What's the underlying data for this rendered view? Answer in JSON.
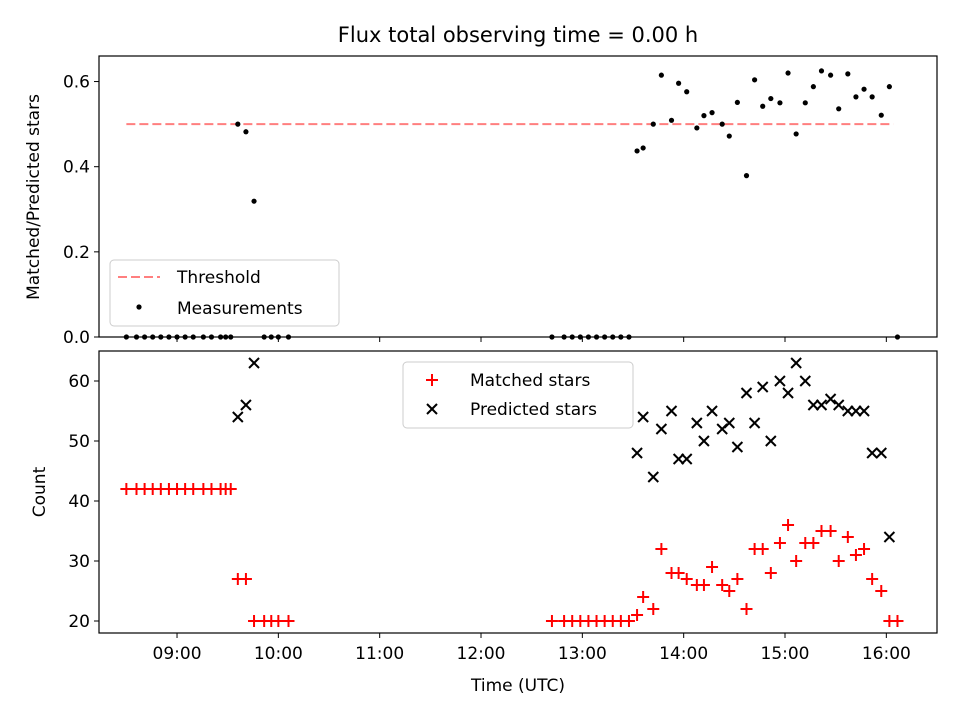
{
  "chart_data": [
    {
      "type": "scatter",
      "title": "Flux total observing time = 0.00 h",
      "xlabel": "",
      "ylabel": "Matched/Predicted stars",
      "xlim": [
        8.23,
        16.5
      ],
      "ylim": [
        0,
        0.66
      ],
      "yticks": [
        0.0,
        0.2,
        0.4,
        0.6
      ],
      "ytick_labels": [
        "0.0",
        "0.2",
        "0.4",
        "0.6"
      ],
      "grid": false,
      "legend": "lower-left",
      "threshold": {
        "name": "Threshold",
        "value": 0.5,
        "x": [
          8.5,
          16.07
        ],
        "color": "#ff7f7f"
      },
      "series": [
        {
          "name": "Measurements",
          "color": "#000000",
          "x": [
            8.5,
            8.6,
            8.68,
            8.76,
            8.84,
            8.92,
            9.0,
            9.08,
            9.16,
            9.26,
            9.34,
            9.43,
            9.48,
            9.53,
            9.6,
            9.68,
            9.76,
            9.86,
            9.93,
            10.0,
            10.1,
            12.7,
            12.82,
            12.9,
            12.98,
            13.06,
            13.14,
            13.22,
            13.3,
            13.38,
            13.46,
            13.54,
            13.6,
            13.7,
            13.78,
            13.88,
            13.95,
            14.03,
            14.13,
            14.2,
            14.28,
            14.38,
            14.45,
            14.53,
            14.62,
            14.7,
            14.78,
            14.86,
            14.95,
            15.03,
            15.11,
            15.2,
            15.28,
            15.36,
            15.45,
            15.53,
            15.62,
            15.7,
            15.78,
            15.86,
            15.95,
            16.03,
            16.11
          ],
          "y": [
            0,
            0,
            0,
            0,
            0,
            0,
            0,
            0,
            0,
            0,
            0,
            0,
            0,
            0,
            0.5,
            0.482,
            0.319,
            0,
            0,
            0,
            0,
            0,
            0,
            0,
            0,
            0,
            0,
            0,
            0,
            0,
            0,
            0.437,
            0.444,
            0.5,
            0.615,
            0.509,
            0.596,
            0.576,
            0.491,
            0.52,
            0.527,
            0.5,
            0.472,
            0.551,
            0.379,
            0.604,
            0.542,
            0.56,
            0.55,
            0.62,
            0.477,
            0.55,
            0.588,
            0.625,
            0.615,
            0.536,
            0.618,
            0.564,
            0.582,
            0.564,
            0.521,
            0.588,
            0
          ]
        }
      ]
    },
    {
      "type": "scatter",
      "title": "",
      "xlabel": "Time (UTC)",
      "ylabel": "Count",
      "xlim": [
        8.23,
        16.5
      ],
      "ylim": [
        18,
        65
      ],
      "yticks": [
        20,
        30,
        40,
        50,
        60
      ],
      "ytick_labels": [
        "20",
        "30",
        "40",
        "50",
        "60"
      ],
      "xticks": [
        9,
        10,
        11,
        12,
        13,
        14,
        15,
        16
      ],
      "xtick_labels": [
        "09:00",
        "10:00",
        "11:00",
        "12:00",
        "13:00",
        "14:00",
        "15:00",
        "16:00"
      ],
      "grid": false,
      "legend": "upper-center",
      "series": [
        {
          "name": "Matched stars",
          "marker": "plus",
          "color": "#ff0000",
          "x": [
            8.5,
            8.6,
            8.68,
            8.76,
            8.84,
            8.92,
            9.0,
            9.08,
            9.16,
            9.26,
            9.34,
            9.43,
            9.48,
            9.53,
            9.6,
            9.68,
            9.76,
            9.86,
            9.93,
            10.0,
            10.1,
            12.7,
            12.82,
            12.9,
            12.98,
            13.06,
            13.14,
            13.22,
            13.3,
            13.38,
            13.46,
            13.54,
            13.6,
            13.7,
            13.78,
            13.88,
            13.95,
            14.03,
            14.13,
            14.2,
            14.28,
            14.38,
            14.45,
            14.53,
            14.62,
            14.7,
            14.78,
            14.86,
            14.95,
            15.03,
            15.11,
            15.2,
            15.28,
            15.36,
            15.45,
            15.53,
            15.62,
            15.7,
            15.78,
            15.86,
            15.95,
            16.03,
            16.11
          ],
          "y": [
            42,
            42,
            42,
            42,
            42,
            42,
            42,
            42,
            42,
            42,
            42,
            42,
            42,
            42,
            27,
            27,
            20,
            20,
            20,
            20,
            20,
            20,
            20,
            20,
            20,
            20,
            20,
            20,
            20,
            20,
            20,
            21,
            24,
            22,
            32,
            28,
            28,
            27,
            26,
            26,
            29,
            26,
            25,
            27,
            22,
            32,
            32,
            28,
            33,
            36,
            30,
            33,
            33,
            35,
            35,
            30,
            34,
            31,
            32,
            27,
            25,
            20,
            20
          ]
        },
        {
          "name": "Predicted stars",
          "marker": "x",
          "color": "#000000",
          "x": [
            9.6,
            9.68,
            9.76,
            13.54,
            13.6,
            13.7,
            13.78,
            13.88,
            13.95,
            14.03,
            14.13,
            14.2,
            14.28,
            14.38,
            14.45,
            14.53,
            14.62,
            14.7,
            14.78,
            14.86,
            14.95,
            15.03,
            15.11,
            15.2,
            15.28,
            15.36,
            15.45,
            15.53,
            15.62,
            15.7,
            15.78,
            15.86,
            15.95,
            16.03
          ],
          "y": [
            54,
            56,
            63,
            48,
            54,
            44,
            52,
            55,
            47,
            47,
            53,
            50,
            55,
            52,
            53,
            49,
            58,
            53,
            59,
            50,
            60,
            58,
            63,
            60,
            56,
            56,
            57,
            56,
            55,
            55,
            55,
            48,
            48,
            34
          ]
        }
      ]
    }
  ]
}
